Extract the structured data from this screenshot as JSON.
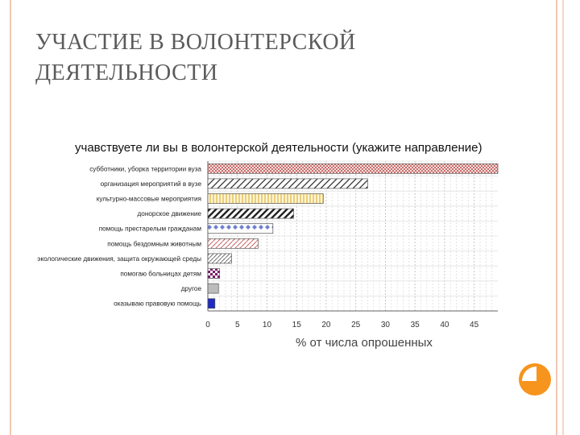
{
  "slide": {
    "title_line1": "УЧАСТИЕ В ВОЛОНТЕРСКОЙ",
    "title_line2": "ДЕЯТЕЛЬНОСТИ"
  },
  "colors": {
    "frame": "#f2c7b4",
    "accent_orange": "#f7941d",
    "title_text": "#5b5b5b"
  },
  "chart_data": {
    "type": "bar",
    "orientation": "horizontal",
    "title": "учавствуете ли вы в волонтерской деятельности (укажите направление)",
    "xlabel": "% от числа опрошенных",
    "ylabel": "",
    "xlim": [
      0,
      49
    ],
    "xticks": [
      0,
      5,
      10,
      15,
      20,
      25,
      30,
      35,
      40,
      45
    ],
    "grid": true,
    "categories": [
      "субботники, уборка территории вуза",
      "организация мероприятий в вузе",
      "культурно-массовые мероприятия",
      "донорское движение",
      "помощь престарелым гражданам",
      "помощь бездомным животным",
      "экологические движения, защита окружающей среды",
      "помогаю больницах детям",
      "другое",
      "оказываю правовую помощь"
    ],
    "values": [
      49,
      27,
      19.5,
      14.5,
      11,
      8.5,
      4,
      2,
      1.8,
      1.2
    ],
    "bar_styles": [
      {
        "pattern": "hatch-dense",
        "color": "#c0504d"
      },
      {
        "pattern": "diag-coarse",
        "color": "#333333"
      },
      {
        "pattern": "vertical",
        "color": "#f5d77a"
      },
      {
        "pattern": "zigzag-dark",
        "color": "#222222"
      },
      {
        "pattern": "diamonds",
        "color": "#6f7fd0"
      },
      {
        "pattern": "diag-red",
        "color": "#c0504d"
      },
      {
        "pattern": "diag-thin",
        "color": "#555555"
      },
      {
        "pattern": "checker",
        "color": "#7a1a6a"
      },
      {
        "pattern": "solid",
        "color": "#bbbbbb"
      },
      {
        "pattern": "solid",
        "color": "#1f2bbf"
      }
    ]
  }
}
